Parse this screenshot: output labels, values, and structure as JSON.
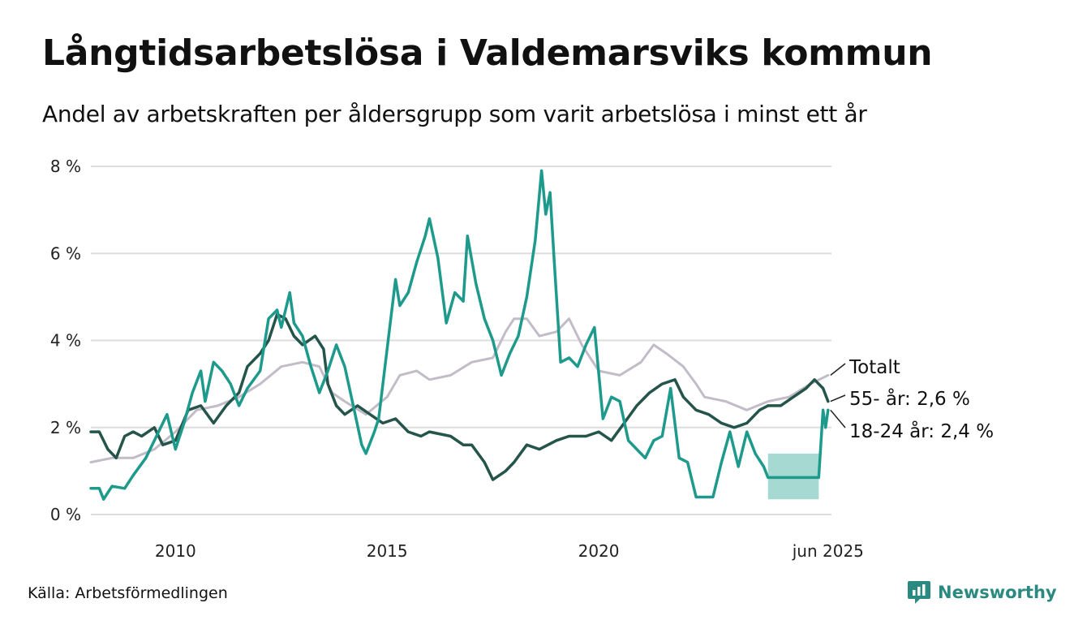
{
  "title": "Långtidsarbetslösa i Valdemarsviks kommun",
  "subtitle": "Andel av arbetskraften per åldersgrupp som varit arbetslösa i minst ett år",
  "source": "Källa: Arbetsförmedlingen",
  "brand": "Newsworthy",
  "icons": {
    "brand_logo": "newsworthy-logo-icon"
  },
  "colors": {
    "total": "#c2bcc8",
    "age55": "#24544a",
    "age18_24": "#1e9a8c",
    "band": "#a5d9d1",
    "grid": "#dddddd",
    "brand": "#2a8a82"
  },
  "chart_data": {
    "type": "line",
    "xlim": [
      2008,
      2025.5
    ],
    "ylim": [
      0,
      8
    ],
    "y_ticks": [
      0,
      2,
      4,
      6,
      8
    ],
    "y_tick_labels": [
      "0 %",
      "2 %",
      "4 %",
      "6 %",
      "8 %"
    ],
    "x_ticks": [
      2010,
      2015,
      2020,
      2025.42
    ],
    "x_tick_labels": [
      "2010",
      "2015",
      "2020",
      "jun 2025"
    ],
    "grid": "horizontal",
    "series": [
      {
        "key": "total",
        "name": "Totalt",
        "end_label": "Totalt",
        "points": [
          [
            2008.0,
            1.2
          ],
          [
            2008.5,
            1.3
          ],
          [
            2009.0,
            1.3
          ],
          [
            2009.5,
            1.5
          ],
          [
            2010.0,
            1.9
          ],
          [
            2010.5,
            2.4
          ],
          [
            2011.0,
            2.5
          ],
          [
            2011.5,
            2.7
          ],
          [
            2012.0,
            3.0
          ],
          [
            2012.5,
            3.4
          ],
          [
            2013.0,
            3.5
          ],
          [
            2013.4,
            3.4
          ],
          [
            2013.7,
            2.8
          ],
          [
            2014.0,
            2.6
          ],
          [
            2014.5,
            2.3
          ],
          [
            2015.0,
            2.7
          ],
          [
            2015.3,
            3.2
          ],
          [
            2015.7,
            3.3
          ],
          [
            2016.0,
            3.1
          ],
          [
            2016.5,
            3.2
          ],
          [
            2017.0,
            3.5
          ],
          [
            2017.5,
            3.6
          ],
          [
            2017.8,
            4.2
          ],
          [
            2018.0,
            4.5
          ],
          [
            2018.3,
            4.5
          ],
          [
            2018.6,
            4.1
          ],
          [
            2019.0,
            4.2
          ],
          [
            2019.3,
            4.5
          ],
          [
            2019.6,
            3.9
          ],
          [
            2020.0,
            3.3
          ],
          [
            2020.5,
            3.2
          ],
          [
            2021.0,
            3.5
          ],
          [
            2021.3,
            3.9
          ],
          [
            2021.6,
            3.7
          ],
          [
            2022.0,
            3.4
          ],
          [
            2022.3,
            3.0
          ],
          [
            2022.5,
            2.7
          ],
          [
            2023.0,
            2.6
          ],
          [
            2023.5,
            2.4
          ],
          [
            2024.0,
            2.6
          ],
          [
            2024.5,
            2.7
          ],
          [
            2025.0,
            3.0
          ],
          [
            2025.42,
            3.2
          ]
        ]
      },
      {
        "key": "age55",
        "name": "55- år",
        "end_label": "55- år: 2,6 %",
        "points": [
          [
            2008.0,
            1.9
          ],
          [
            2008.2,
            1.9
          ],
          [
            2008.4,
            1.5
          ],
          [
            2008.6,
            1.3
          ],
          [
            2008.8,
            1.8
          ],
          [
            2009.0,
            1.9
          ],
          [
            2009.2,
            1.8
          ],
          [
            2009.5,
            2.0
          ],
          [
            2009.7,
            1.6
          ],
          [
            2010.0,
            1.7
          ],
          [
            2010.3,
            2.4
          ],
          [
            2010.6,
            2.5
          ],
          [
            2010.9,
            2.1
          ],
          [
            2011.2,
            2.5
          ],
          [
            2011.5,
            2.8
          ],
          [
            2011.7,
            3.4
          ],
          [
            2012.0,
            3.7
          ],
          [
            2012.2,
            4.0
          ],
          [
            2012.4,
            4.6
          ],
          [
            2012.6,
            4.5
          ],
          [
            2012.8,
            4.1
          ],
          [
            2013.0,
            3.9
          ],
          [
            2013.3,
            4.1
          ],
          [
            2013.5,
            3.8
          ],
          [
            2013.6,
            3.0
          ],
          [
            2013.8,
            2.5
          ],
          [
            2014.0,
            2.3
          ],
          [
            2014.3,
            2.5
          ],
          [
            2014.6,
            2.3
          ],
          [
            2014.9,
            2.1
          ],
          [
            2015.2,
            2.2
          ],
          [
            2015.5,
            1.9
          ],
          [
            2015.8,
            1.8
          ],
          [
            2016.0,
            1.9
          ],
          [
            2016.5,
            1.8
          ],
          [
            2016.8,
            1.6
          ],
          [
            2017.0,
            1.6
          ],
          [
            2017.3,
            1.2
          ],
          [
            2017.5,
            0.8
          ],
          [
            2017.8,
            1.0
          ],
          [
            2018.0,
            1.2
          ],
          [
            2018.3,
            1.6
          ],
          [
            2018.6,
            1.5
          ],
          [
            2019.0,
            1.7
          ],
          [
            2019.3,
            1.8
          ],
          [
            2019.7,
            1.8
          ],
          [
            2020.0,
            1.9
          ],
          [
            2020.3,
            1.7
          ],
          [
            2020.6,
            2.1
          ],
          [
            2020.9,
            2.5
          ],
          [
            2021.2,
            2.8
          ],
          [
            2021.5,
            3.0
          ],
          [
            2021.8,
            3.1
          ],
          [
            2022.0,
            2.7
          ],
          [
            2022.3,
            2.4
          ],
          [
            2022.6,
            2.3
          ],
          [
            2022.9,
            2.1
          ],
          [
            2023.2,
            2.0
          ],
          [
            2023.5,
            2.1
          ],
          [
            2023.8,
            2.4
          ],
          [
            2024.0,
            2.5
          ],
          [
            2024.3,
            2.5
          ],
          [
            2024.6,
            2.7
          ],
          [
            2024.9,
            2.9
          ],
          [
            2025.1,
            3.1
          ],
          [
            2025.3,
            2.9
          ],
          [
            2025.42,
            2.6
          ]
        ]
      },
      {
        "key": "age18_24",
        "name": "18-24 år",
        "end_label": "18-24 år: 2,4 %",
        "points": [
          [
            2008.0,
            0.6
          ],
          [
            2008.2,
            0.6
          ],
          [
            2008.3,
            0.35
          ],
          [
            2008.5,
            0.65
          ],
          [
            2008.8,
            0.6
          ],
          [
            2009.0,
            0.9
          ],
          [
            2009.3,
            1.3
          ],
          [
            2009.5,
            1.7
          ],
          [
            2009.8,
            2.3
          ],
          [
            2010.0,
            1.5
          ],
          [
            2010.2,
            2.1
          ],
          [
            2010.4,
            2.8
          ],
          [
            2010.6,
            3.3
          ],
          [
            2010.7,
            2.6
          ],
          [
            2010.9,
            3.5
          ],
          [
            2011.1,
            3.3
          ],
          [
            2011.3,
            3.0
          ],
          [
            2011.5,
            2.5
          ],
          [
            2011.7,
            2.9
          ],
          [
            2012.0,
            3.3
          ],
          [
            2012.2,
            4.5
          ],
          [
            2012.4,
            4.7
          ],
          [
            2012.5,
            4.3
          ],
          [
            2012.7,
            5.1
          ],
          [
            2012.8,
            4.4
          ],
          [
            2013.0,
            4.1
          ],
          [
            2013.2,
            3.4
          ],
          [
            2013.4,
            2.8
          ],
          [
            2013.6,
            3.3
          ],
          [
            2013.8,
            3.9
          ],
          [
            2014.0,
            3.4
          ],
          [
            2014.2,
            2.5
          ],
          [
            2014.4,
            1.6
          ],
          [
            2014.5,
            1.4
          ],
          [
            2014.7,
            1.9
          ],
          [
            2014.8,
            2.2
          ],
          [
            2015.0,
            3.8
          ],
          [
            2015.2,
            5.4
          ],
          [
            2015.3,
            4.8
          ],
          [
            2015.5,
            5.1
          ],
          [
            2015.7,
            5.8
          ],
          [
            2015.9,
            6.4
          ],
          [
            2016.0,
            6.8
          ],
          [
            2016.2,
            5.9
          ],
          [
            2016.4,
            4.4
          ],
          [
            2016.6,
            5.1
          ],
          [
            2016.8,
            4.9
          ],
          [
            2016.9,
            6.4
          ],
          [
            2017.1,
            5.3
          ],
          [
            2017.3,
            4.5
          ],
          [
            2017.5,
            4.0
          ],
          [
            2017.7,
            3.2
          ],
          [
            2017.9,
            3.7
          ],
          [
            2018.1,
            4.1
          ],
          [
            2018.3,
            5.0
          ],
          [
            2018.5,
            6.3
          ],
          [
            2018.65,
            7.9
          ],
          [
            2018.75,
            6.9
          ],
          [
            2018.85,
            7.4
          ],
          [
            2018.95,
            5.8
          ],
          [
            2019.1,
            3.5
          ],
          [
            2019.3,
            3.6
          ],
          [
            2019.5,
            3.4
          ],
          [
            2019.7,
            3.9
          ],
          [
            2019.9,
            4.3
          ],
          [
            2020.1,
            2.2
          ],
          [
            2020.3,
            2.7
          ],
          [
            2020.5,
            2.6
          ],
          [
            2020.7,
            1.7
          ],
          [
            2020.9,
            1.5
          ],
          [
            2021.1,
            1.3
          ],
          [
            2021.3,
            1.7
          ],
          [
            2021.5,
            1.8
          ],
          [
            2021.7,
            2.9
          ],
          [
            2021.9,
            1.3
          ],
          [
            2022.1,
            1.2
          ],
          [
            2022.3,
            0.4
          ],
          [
            2022.5,
            0.4
          ],
          [
            2022.7,
            0.4
          ],
          [
            2022.9,
            1.2
          ],
          [
            2023.1,
            1.9
          ],
          [
            2023.3,
            1.1
          ],
          [
            2023.5,
            1.9
          ],
          [
            2023.7,
            1.4
          ],
          [
            2023.9,
            1.1
          ],
          [
            2024.0,
            0.85
          ],
          [
            2024.5,
            0.85
          ],
          [
            2025.0,
            0.85
          ],
          [
            2025.2,
            0.85
          ],
          [
            2025.3,
            2.4
          ],
          [
            2025.36,
            2.0
          ],
          [
            2025.42,
            2.4
          ]
        ],
        "band": {
          "x_start": 2024.0,
          "x_end": 2025.2,
          "y_low": 0.35,
          "y_high": 1.4
        }
      }
    ]
  }
}
